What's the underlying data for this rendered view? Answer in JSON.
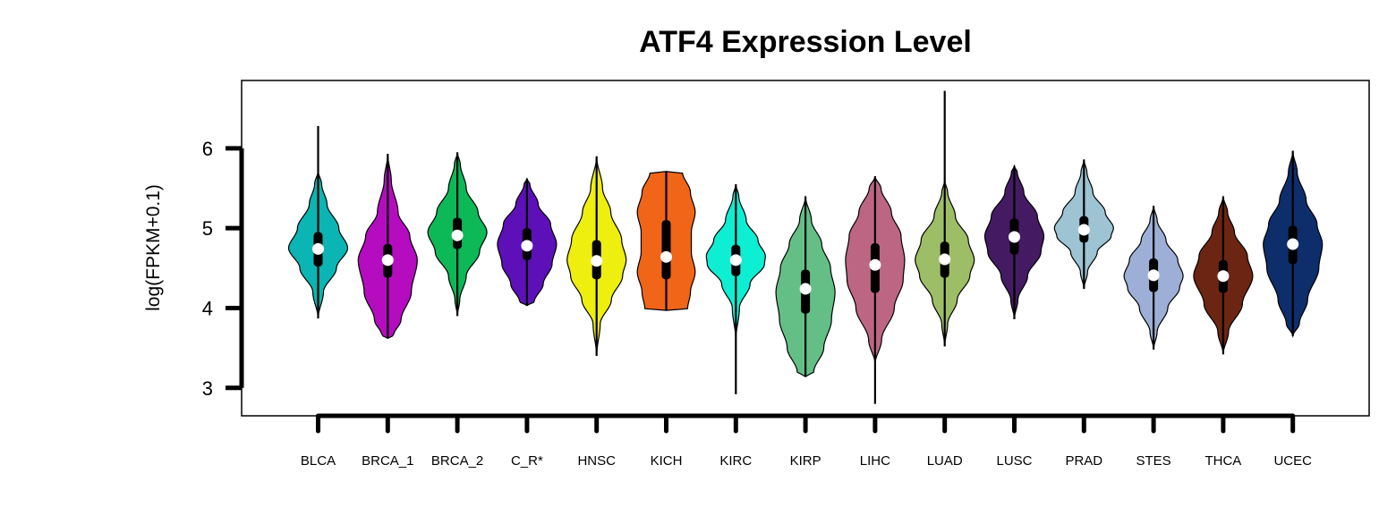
{
  "chart_data": {
    "type": "violin",
    "title": "ATF4 Expression Level",
    "xlabel": "",
    "ylabel": "log(FPKM+0.1)",
    "ylim": [
      2.65,
      6.85
    ],
    "yticks": [
      3,
      4,
      5,
      6
    ],
    "grid": false,
    "legend": "none",
    "categories": [
      "BLCA",
      "BRCA_1",
      "BRCA_2",
      "C_R*",
      "HNSC",
      "KICH",
      "KIRC",
      "KIRP",
      "LIHC",
      "LUAD",
      "LUSC",
      "PRAD",
      "STES",
      "THCA",
      "UCEC"
    ],
    "series": [
      {
        "name": "BLCA",
        "color": "#0BB5B3",
        "min": 3.87,
        "q1": 4.52,
        "median": 4.74,
        "q3": 4.95,
        "max": 6.28,
        "violin_min": 3.87,
        "violin_max": 5.72,
        "profile": [
          [
            3.87,
            0.0
          ],
          [
            4.2,
            0.18
          ],
          [
            4.5,
            0.62
          ],
          [
            4.75,
            1.0
          ],
          [
            5.0,
            0.7
          ],
          [
            5.3,
            0.3
          ],
          [
            5.55,
            0.12
          ],
          [
            5.72,
            0.0
          ]
        ]
      },
      {
        "name": "BRCA_1",
        "color": "#B50CC0",
        "min": 3.62,
        "q1": 4.38,
        "median": 4.6,
        "q3": 4.8,
        "max": 5.93,
        "violin_min": 3.62,
        "violin_max": 5.93,
        "profile": [
          [
            3.62,
            0.0
          ],
          [
            3.66,
            0.2
          ],
          [
            3.85,
            0.45
          ],
          [
            4.2,
            0.8
          ],
          [
            4.6,
            1.0
          ],
          [
            4.9,
            0.75
          ],
          [
            5.2,
            0.35
          ],
          [
            5.6,
            0.12
          ],
          [
            5.93,
            0.0
          ]
        ]
      },
      {
        "name": "BRCA_2",
        "color": "#0DB857",
        "min": 3.9,
        "q1": 4.74,
        "median": 4.91,
        "q3": 5.13,
        "max": 5.95,
        "violin_min": 3.9,
        "violin_max": 5.95,
        "profile": [
          [
            3.9,
            0.0
          ],
          [
            4.1,
            0.08
          ],
          [
            4.4,
            0.3
          ],
          [
            4.7,
            0.75
          ],
          [
            4.95,
            1.0
          ],
          [
            5.2,
            0.7
          ],
          [
            5.5,
            0.3
          ],
          [
            5.8,
            0.1
          ],
          [
            5.95,
            0.0
          ]
        ]
      },
      {
        "name": "C_R*",
        "color": "#5D10B8",
        "min": 4.03,
        "q1": 4.6,
        "median": 4.78,
        "q3": 5.0,
        "max": 5.62,
        "violin_min": 4.03,
        "violin_max": 5.62,
        "profile": [
          [
            4.03,
            0.0
          ],
          [
            4.08,
            0.25
          ],
          [
            4.3,
            0.55
          ],
          [
            4.55,
            0.85
          ],
          [
            4.8,
            1.0
          ],
          [
            5.05,
            0.8
          ],
          [
            5.3,
            0.38
          ],
          [
            5.55,
            0.1
          ],
          [
            5.62,
            0.0
          ]
        ]
      },
      {
        "name": "HNSC",
        "color": "#EEEE0F",
        "min": 3.4,
        "q1": 4.36,
        "median": 4.59,
        "q3": 4.85,
        "max": 5.9,
        "violin_min": 3.4,
        "violin_max": 5.9,
        "profile": [
          [
            3.4,
            0.0
          ],
          [
            3.8,
            0.12
          ],
          [
            4.1,
            0.5
          ],
          [
            4.4,
            0.88
          ],
          [
            4.6,
            1.0
          ],
          [
            4.85,
            0.85
          ],
          [
            5.2,
            0.48
          ],
          [
            5.5,
            0.2
          ],
          [
            5.9,
            0.0
          ]
        ]
      },
      {
        "name": "KICH",
        "color": "#F06517",
        "min": 3.97,
        "q1": 4.36,
        "median": 4.64,
        "q3": 5.1,
        "max": 5.71,
        "violin_min": 3.97,
        "violin_max": 5.71,
        "profile": [
          [
            3.97,
            0.0
          ],
          [
            3.98,
            0.72
          ],
          [
            4.2,
            0.82
          ],
          [
            4.45,
            0.98
          ],
          [
            4.7,
            0.85
          ],
          [
            4.95,
            0.85
          ],
          [
            5.2,
            0.98
          ],
          [
            5.45,
            0.82
          ],
          [
            5.7,
            0.55
          ],
          [
            5.71,
            0.0
          ]
        ]
      },
      {
        "name": "KIRC",
        "color": "#0EEED3",
        "min": 2.92,
        "q1": 4.4,
        "median": 4.6,
        "q3": 4.79,
        "max": 5.55,
        "violin_min": 3.6,
        "violin_max": 5.55,
        "profile": [
          [
            3.6,
            0.0
          ],
          [
            4.0,
            0.12
          ],
          [
            4.3,
            0.48
          ],
          [
            4.55,
            0.97
          ],
          [
            4.65,
            1.0
          ],
          [
            4.85,
            0.75
          ],
          [
            5.1,
            0.35
          ],
          [
            5.4,
            0.1
          ],
          [
            5.55,
            0.0
          ]
        ]
      },
      {
        "name": "KIRP",
        "color": "#64BF86",
        "min": 3.14,
        "q1": 3.93,
        "median": 4.24,
        "q3": 4.48,
        "max": 5.4,
        "violin_min": 3.14,
        "violin_max": 5.4,
        "profile": [
          [
            3.14,
            0.0
          ],
          [
            3.2,
            0.28
          ],
          [
            3.5,
            0.62
          ],
          [
            3.85,
            0.88
          ],
          [
            4.2,
            1.0
          ],
          [
            4.5,
            0.85
          ],
          [
            4.8,
            0.55
          ],
          [
            5.1,
            0.2
          ],
          [
            5.4,
            0.0
          ]
        ]
      },
      {
        "name": "LIHC",
        "color": "#BC6683",
        "min": 2.8,
        "q1": 4.19,
        "median": 4.54,
        "q3": 4.81,
        "max": 5.65,
        "violin_min": 3.3,
        "violin_max": 5.65,
        "profile": [
          [
            3.3,
            0.0
          ],
          [
            3.6,
            0.22
          ],
          [
            4.0,
            0.65
          ],
          [
            4.35,
            0.95
          ],
          [
            4.6,
            1.0
          ],
          [
            4.9,
            0.88
          ],
          [
            5.2,
            0.55
          ],
          [
            5.5,
            0.2
          ],
          [
            5.65,
            0.0
          ]
        ]
      },
      {
        "name": "LUAD",
        "color": "#9DBE66",
        "min": 3.52,
        "q1": 4.38,
        "median": 4.61,
        "q3": 4.83,
        "max": 6.72,
        "violin_min": 3.52,
        "violin_max": 5.6,
        "profile": [
          [
            3.52,
            0.0
          ],
          [
            3.8,
            0.1
          ],
          [
            4.1,
            0.42
          ],
          [
            4.4,
            0.85
          ],
          [
            4.6,
            1.0
          ],
          [
            4.85,
            0.8
          ],
          [
            5.15,
            0.36
          ],
          [
            5.45,
            0.1
          ],
          [
            5.6,
            0.0
          ]
        ]
      },
      {
        "name": "LUSC",
        "color": "#441B62",
        "min": 3.86,
        "q1": 4.67,
        "median": 4.89,
        "q3": 5.12,
        "max": 5.78,
        "violin_min": 3.86,
        "violin_max": 5.78,
        "profile": [
          [
            3.86,
            0.0
          ],
          [
            4.1,
            0.12
          ],
          [
            4.4,
            0.45
          ],
          [
            4.7,
            0.9
          ],
          [
            4.9,
            1.0
          ],
          [
            5.15,
            0.78
          ],
          [
            5.45,
            0.32
          ],
          [
            5.7,
            0.1
          ],
          [
            5.78,
            0.0
          ]
        ]
      },
      {
        "name": "PRAD",
        "color": "#9EC3D3",
        "min": 4.24,
        "q1": 4.82,
        "median": 4.98,
        "q3": 5.15,
        "max": 5.86,
        "violin_min": 4.24,
        "violin_max": 5.86,
        "profile": [
          [
            4.24,
            0.0
          ],
          [
            4.45,
            0.12
          ],
          [
            4.7,
            0.45
          ],
          [
            4.9,
            0.92
          ],
          [
            5.0,
            1.0
          ],
          [
            5.2,
            0.72
          ],
          [
            5.45,
            0.3
          ],
          [
            5.7,
            0.1
          ],
          [
            5.86,
            0.0
          ]
        ]
      },
      {
        "name": "STES",
        "color": "#9DAFD6",
        "min": 3.48,
        "q1": 4.2,
        "median": 4.41,
        "q3": 4.62,
        "max": 5.28,
        "violin_min": 3.48,
        "violin_max": 5.28,
        "profile": [
          [
            3.48,
            0.0
          ],
          [
            3.7,
            0.12
          ],
          [
            4.0,
            0.48
          ],
          [
            4.25,
            0.88
          ],
          [
            4.4,
            1.0
          ],
          [
            4.6,
            0.82
          ],
          [
            4.85,
            0.42
          ],
          [
            5.1,
            0.12
          ],
          [
            5.28,
            0.0
          ]
        ]
      },
      {
        "name": "THCA",
        "color": "#6B2512",
        "min": 3.42,
        "q1": 4.19,
        "median": 4.4,
        "q3": 4.6,
        "max": 5.4,
        "violin_min": 3.42,
        "violin_max": 5.4,
        "profile": [
          [
            3.42,
            0.0
          ],
          [
            3.7,
            0.18
          ],
          [
            4.05,
            0.65
          ],
          [
            4.4,
            1.0
          ],
          [
            4.65,
            0.82
          ],
          [
            4.95,
            0.38
          ],
          [
            5.2,
            0.15
          ],
          [
            5.4,
            0.0
          ]
        ]
      },
      {
        "name": "UCEC",
        "color": "#0E2D6B",
        "min": 3.65,
        "q1": 4.55,
        "median": 4.8,
        "q3": 5.03,
        "max": 5.97,
        "violin_min": 3.65,
        "violin_max": 5.97,
        "profile": [
          [
            3.65,
            0.0
          ],
          [
            3.8,
            0.22
          ],
          [
            4.1,
            0.5
          ],
          [
            4.5,
            0.88
          ],
          [
            4.8,
            1.0
          ],
          [
            5.05,
            0.82
          ],
          [
            5.35,
            0.45
          ],
          [
            5.7,
            0.15
          ],
          [
            5.97,
            0.0
          ]
        ]
      }
    ]
  }
}
